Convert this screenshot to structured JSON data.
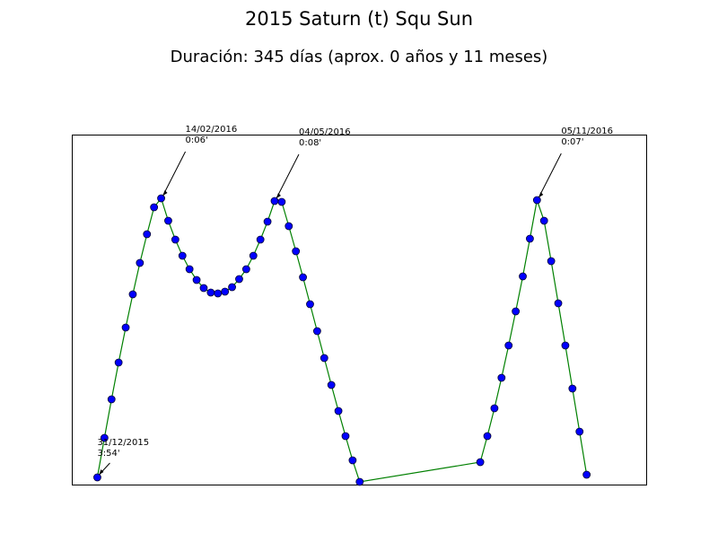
{
  "chart_data": {
    "type": "line",
    "title": "2015 Saturn (t) Squ Sun",
    "subtitle": "Duración: 345 días (aprox. 0 años y 11 meses)",
    "x": [
      0,
      5,
      10,
      15,
      20,
      25,
      30,
      35,
      40,
      45,
      50,
      55,
      60,
      65,
      70,
      75,
      80,
      85,
      90,
      95,
      100,
      105,
      110,
      115,
      120,
      125,
      130,
      135,
      140,
      145,
      150,
      155,
      160,
      165,
      170,
      175,
      180,
      185,
      270,
      275,
      280,
      285,
      290,
      295,
      300,
      305,
      310,
      315,
      320,
      325,
      330,
      335,
      340,
      345
    ],
    "series": [
      {
        "color": "#008000",
        "marker_color": "#0000ff",
        "values": [
          8,
          52,
          95,
          136,
          175,
          212,
          247,
          279,
          309,
          319,
          294,
          273,
          255,
          240,
          228,
          219,
          214,
          213,
          215,
          220,
          229,
          240,
          255,
          273,
          293,
          316,
          315,
          288,
          260,
          231,
          201,
          171,
          141,
          111,
          82,
          54,
          27,
          3,
          25,
          54,
          85,
          119,
          155,
          193,
          232,
          274,
          317,
          294,
          249,
          202,
          155,
          107,
          59,
          11
        ]
      }
    ],
    "xlim": [
      -18,
      387
    ],
    "ylim": [
      0,
      390
    ],
    "annotations": [
      {
        "x": 0,
        "date": "31/12/2015",
        "orb": "3:54'"
      },
      {
        "x": 45,
        "date": "14/02/2016",
        "orb": "0:06'"
      },
      {
        "x": 125,
        "date": "04/05/2016",
        "orb": "0:08'"
      },
      {
        "x": 310,
        "date": "05/11/2016",
        "orb": "0:07'"
      }
    ]
  }
}
